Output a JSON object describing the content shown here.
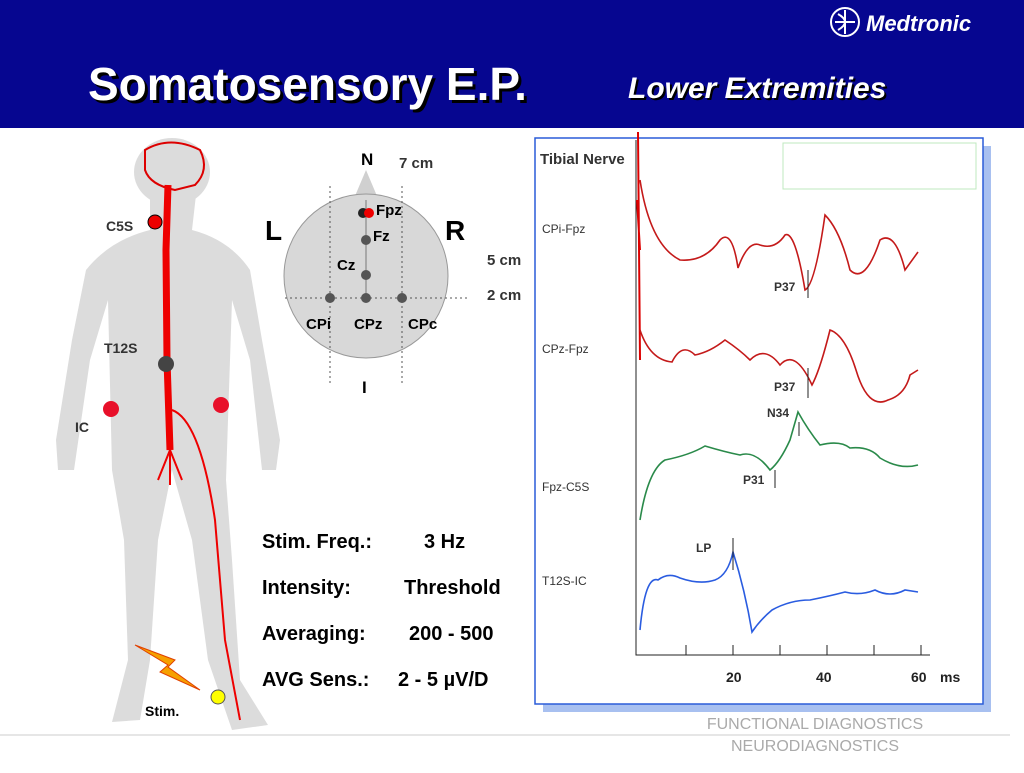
{
  "header": {
    "title": "Somatosensory E.P.",
    "subtitle": "Lower Extremities",
    "logo": "Medtronic"
  },
  "body_labels": {
    "c5s": "C5S",
    "t12s": "T12S",
    "ic": "IC",
    "stim": "Stim."
  },
  "head_diagram": {
    "nasion": "N",
    "inion": "I",
    "left": "L",
    "right": "R",
    "width": "7 cm",
    "offset_5": "5 cm",
    "offset_2": "2 cm",
    "electrodes": [
      "Fpz",
      "Fz",
      "Cz",
      "CPi",
      "CPz",
      "CPc"
    ]
  },
  "settings": [
    {
      "label": "Stim. Freq.:",
      "value": "3 Hz"
    },
    {
      "label": "Intensity:",
      "value": "Threshold"
    },
    {
      "label": "Averaging:",
      "value": "200 - 500"
    },
    {
      "label": "AVG Sens.:",
      "value": "2 - 5 µV/D"
    }
  ],
  "traces": {
    "title": "Tibial Nerve",
    "channels": [
      "CPi-Fpz",
      "CPz-Fpz",
      "Fpz-C5S",
      "T12S-IC"
    ],
    "peaks": [
      "P37",
      "P37",
      "N34",
      "P31",
      "LP"
    ],
    "axis_ticks": [
      "20",
      "40",
      "60"
    ],
    "axis_unit": "ms"
  },
  "footer": {
    "line1": "FUNCTIONAL DIAGNOSTICS",
    "line2": "NEURODIAGNOSTICS"
  }
}
